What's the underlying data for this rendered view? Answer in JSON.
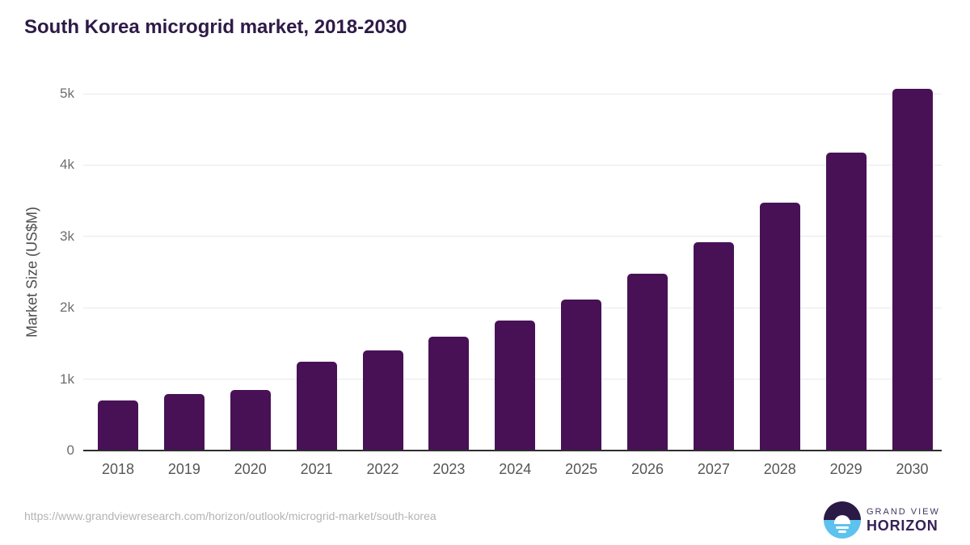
{
  "page": {
    "source_url": "https://www.grandviewresearch.com/horizon/outlook/microgrid-market/south-korea"
  },
  "chart_data": {
    "type": "bar",
    "title": "South Korea microgrid market, 2018-2030",
    "categories": [
      "2018",
      "2019",
      "2020",
      "2021",
      "2022",
      "2023",
      "2024",
      "2025",
      "2026",
      "2027",
      "2028",
      "2029",
      "2030"
    ],
    "values": [
      700,
      790,
      850,
      1245,
      1400,
      1595,
      1820,
      2115,
      2475,
      2920,
      3475,
      4175,
      5070
    ],
    "xlabel": "",
    "ylabel": "Market Size (US$M)",
    "ylim": [
      0,
      5200
    ],
    "yticks": [
      {
        "value": 0,
        "label": "0"
      },
      {
        "value": 1000,
        "label": "1k"
      },
      {
        "value": 2000,
        "label": "2k"
      },
      {
        "value": 3000,
        "label": "3k"
      },
      {
        "value": 4000,
        "label": "4k"
      },
      {
        "value": 5000,
        "label": "5k"
      }
    ],
    "grid": true,
    "legend": false,
    "bar_color": "#481156"
  },
  "branding": {
    "logo_top": "GRAND VIEW",
    "logo_bottom": "HORIZON",
    "logo_dark": "#2b1a45",
    "logo_blue": "#5ec2ee"
  },
  "colors": {
    "title": "#2e1a47",
    "bar": "#481156",
    "axis_line": "#2d2d2d",
    "gridline": "#e9e9e9",
    "tick_label": "#6e6e6e",
    "x_label": "#565656",
    "url_text": "#b3b3b3",
    "background": "#ffffff"
  }
}
